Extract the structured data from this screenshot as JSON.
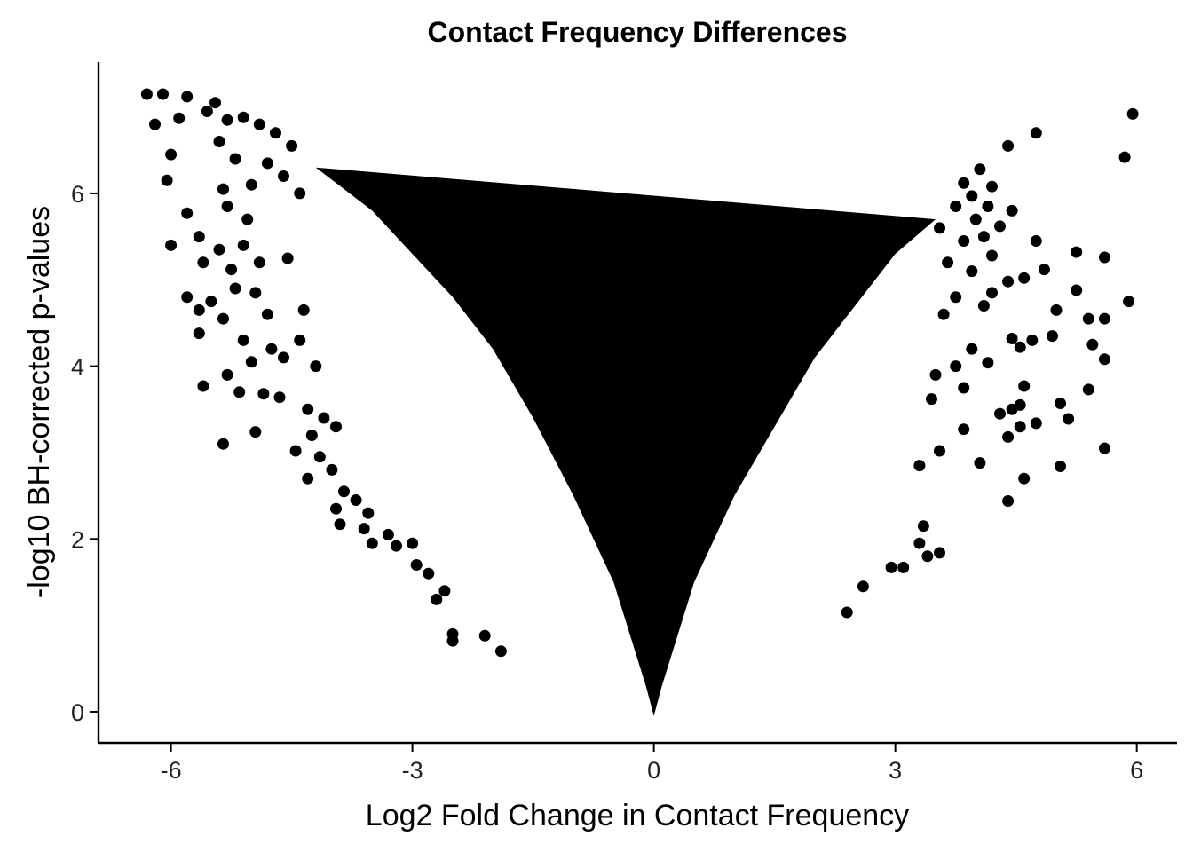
{
  "chart_data": {
    "type": "scatter",
    "title": "Contact Frequency Differences",
    "xlabel": "Log2 Fold Change in Contact Frequency",
    "ylabel": "-log10 BH-corrected p-values",
    "xlim": [
      -6.9,
      6.5
    ],
    "ylim": [
      -0.36,
      7.52
    ],
    "x_ticks": [
      -6,
      -3,
      0,
      3,
      6
    ],
    "x_tick_labels": [
      "-6",
      "-3",
      "0",
      "3",
      "6"
    ],
    "y_ticks": [
      0,
      2,
      4,
      6
    ],
    "y_tick_labels": [
      "0",
      "2",
      "4",
      "6"
    ],
    "grid": false,
    "legend": "none",
    "point_color": "#000000",
    "dense_region": {
      "description_points": [
        [
          -4.2,
          6.3
        ],
        [
          -3.5,
          5.8
        ],
        [
          -3.0,
          5.3
        ],
        [
          -2.5,
          4.8
        ],
        [
          -2.0,
          4.2
        ],
        [
          -1.5,
          3.4
        ],
        [
          -1.0,
          2.5
        ],
        [
          -0.5,
          1.5
        ],
        [
          -0.1,
          0.3
        ],
        [
          0.0,
          -0.05
        ],
        [
          0.1,
          0.3
        ],
        [
          0.5,
          1.5
        ],
        [
          1.0,
          2.5
        ],
        [
          1.5,
          3.3
        ],
        [
          2.0,
          4.1
        ],
        [
          2.5,
          4.7
        ],
        [
          3.0,
          5.3
        ],
        [
          3.5,
          5.7
        ]
      ]
    },
    "points": [
      {
        "x": -6.3,
        "y": 7.15
      },
      {
        "x": -6.1,
        "y": 7.15
      },
      {
        "x": -5.8,
        "y": 7.12
      },
      {
        "x": -5.45,
        "y": 7.05
      },
      {
        "x": -6.2,
        "y": 6.8
      },
      {
        "x": -5.9,
        "y": 6.87
      },
      {
        "x": -5.55,
        "y": 6.95
      },
      {
        "x": -5.3,
        "y": 6.85
      },
      {
        "x": -5.1,
        "y": 6.88
      },
      {
        "x": -4.9,
        "y": 6.8
      },
      {
        "x": -4.7,
        "y": 6.7
      },
      {
        "x": -4.5,
        "y": 6.55
      },
      {
        "x": -6.0,
        "y": 6.45
      },
      {
        "x": -5.4,
        "y": 6.6
      },
      {
        "x": -5.2,
        "y": 6.4
      },
      {
        "x": -4.8,
        "y": 6.35
      },
      {
        "x": -6.05,
        "y": 6.15
      },
      {
        "x": -5.35,
        "y": 6.05
      },
      {
        "x": -5.0,
        "y": 6.1
      },
      {
        "x": -4.6,
        "y": 6.2
      },
      {
        "x": -5.8,
        "y": 5.77
      },
      {
        "x": -5.3,
        "y": 5.85
      },
      {
        "x": -5.05,
        "y": 5.7
      },
      {
        "x": -4.4,
        "y": 6.0
      },
      {
        "x": -6.0,
        "y": 5.4
      },
      {
        "x": -5.65,
        "y": 5.5
      },
      {
        "x": -5.4,
        "y": 5.35
      },
      {
        "x": -5.1,
        "y": 5.4
      },
      {
        "x": -5.6,
        "y": 5.2
      },
      {
        "x": -5.25,
        "y": 5.12
      },
      {
        "x": -4.9,
        "y": 5.2
      },
      {
        "x": -4.55,
        "y": 5.25
      },
      {
        "x": -5.8,
        "y": 4.8
      },
      {
        "x": -5.5,
        "y": 4.75
      },
      {
        "x": -5.2,
        "y": 4.9
      },
      {
        "x": -4.95,
        "y": 4.85
      },
      {
        "x": -5.65,
        "y": 4.65
      },
      {
        "x": -5.35,
        "y": 4.55
      },
      {
        "x": -4.8,
        "y": 4.6
      },
      {
        "x": -4.35,
        "y": 4.65
      },
      {
        "x": -5.65,
        "y": 4.38
      },
      {
        "x": -5.1,
        "y": 4.3
      },
      {
        "x": -4.75,
        "y": 4.2
      },
      {
        "x": -4.4,
        "y": 4.3
      },
      {
        "x": -5.0,
        "y": 4.05
      },
      {
        "x": -4.6,
        "y": 4.1
      },
      {
        "x": -5.3,
        "y": 3.9
      },
      {
        "x": -4.2,
        "y": 4.0
      },
      {
        "x": -5.6,
        "y": 3.77
      },
      {
        "x": -5.15,
        "y": 3.7
      },
      {
        "x": -4.85,
        "y": 3.68
      },
      {
        "x": -4.65,
        "y": 3.64
      },
      {
        "x": -4.3,
        "y": 3.5
      },
      {
        "x": -4.1,
        "y": 3.4
      },
      {
        "x": -3.95,
        "y": 3.3
      },
      {
        "x": -4.25,
        "y": 3.2
      },
      {
        "x": -5.35,
        "y": 3.1
      },
      {
        "x": -4.95,
        "y": 3.24
      },
      {
        "x": -4.45,
        "y": 3.02
      },
      {
        "x": -4.15,
        "y": 2.95
      },
      {
        "x": -4.3,
        "y": 2.7
      },
      {
        "x": -4.0,
        "y": 2.8
      },
      {
        "x": -3.85,
        "y": 2.55
      },
      {
        "x": -3.7,
        "y": 2.45
      },
      {
        "x": -3.95,
        "y": 2.35
      },
      {
        "x": -3.55,
        "y": 2.3
      },
      {
        "x": -3.9,
        "y": 2.17
      },
      {
        "x": -3.6,
        "y": 2.12
      },
      {
        "x": -3.5,
        "y": 1.95
      },
      {
        "x": -3.2,
        "y": 1.92
      },
      {
        "x": -3.0,
        "y": 1.95
      },
      {
        "x": -3.3,
        "y": 2.05
      },
      {
        "x": -2.95,
        "y": 1.7
      },
      {
        "x": -2.8,
        "y": 1.6
      },
      {
        "x": -2.6,
        "y": 1.4
      },
      {
        "x": -2.7,
        "y": 1.3
      },
      {
        "x": -2.5,
        "y": 0.9
      },
      {
        "x": -2.5,
        "y": 0.82
      },
      {
        "x": -2.1,
        "y": 0.88
      },
      {
        "x": -1.9,
        "y": 0.7
      },
      {
        "x": 5.95,
        "y": 6.92
      },
      {
        "x": 4.75,
        "y": 6.7
      },
      {
        "x": 4.4,
        "y": 6.55
      },
      {
        "x": 5.85,
        "y": 6.42
      },
      {
        "x": 4.05,
        "y": 6.28
      },
      {
        "x": 3.85,
        "y": 6.12
      },
      {
        "x": 4.2,
        "y": 6.08
      },
      {
        "x": 3.95,
        "y": 5.97
      },
      {
        "x": 4.15,
        "y": 5.85
      },
      {
        "x": 4.0,
        "y": 5.7
      },
      {
        "x": 3.75,
        "y": 5.85
      },
      {
        "x": 4.45,
        "y": 5.8
      },
      {
        "x": 3.55,
        "y": 5.6
      },
      {
        "x": 3.85,
        "y": 5.45
      },
      {
        "x": 4.1,
        "y": 5.5
      },
      {
        "x": 4.3,
        "y": 5.62
      },
      {
        "x": 4.75,
        "y": 5.45
      },
      {
        "x": 5.25,
        "y": 5.32
      },
      {
        "x": 5.6,
        "y": 5.26
      },
      {
        "x": 4.2,
        "y": 5.28
      },
      {
        "x": 3.65,
        "y": 5.2
      },
      {
        "x": 3.95,
        "y": 5.1
      },
      {
        "x": 4.6,
        "y": 5.02
      },
      {
        "x": 4.85,
        "y": 5.12
      },
      {
        "x": 4.4,
        "y": 4.98
      },
      {
        "x": 4.2,
        "y": 4.85
      },
      {
        "x": 5.25,
        "y": 4.88
      },
      {
        "x": 3.75,
        "y": 4.8
      },
      {
        "x": 5.9,
        "y": 4.75
      },
      {
        "x": 5.0,
        "y": 4.65
      },
      {
        "x": 4.1,
        "y": 4.7
      },
      {
        "x": 3.6,
        "y": 4.6
      },
      {
        "x": 5.4,
        "y": 4.55
      },
      {
        "x": 5.6,
        "y": 4.55
      },
      {
        "x": 4.95,
        "y": 4.35
      },
      {
        "x": 4.7,
        "y": 4.3
      },
      {
        "x": 4.45,
        "y": 4.32
      },
      {
        "x": 4.55,
        "y": 4.22
      },
      {
        "x": 5.45,
        "y": 4.25
      },
      {
        "x": 3.95,
        "y": 4.2
      },
      {
        "x": 5.6,
        "y": 4.08
      },
      {
        "x": 4.15,
        "y": 4.04
      },
      {
        "x": 3.75,
        "y": 4.0
      },
      {
        "x": 3.5,
        "y": 3.9
      },
      {
        "x": 3.85,
        "y": 3.75
      },
      {
        "x": 4.6,
        "y": 3.77
      },
      {
        "x": 5.4,
        "y": 3.73
      },
      {
        "x": 3.45,
        "y": 3.62
      },
      {
        "x": 5.05,
        "y": 3.57
      },
      {
        "x": 4.55,
        "y": 3.55
      },
      {
        "x": 4.45,
        "y": 3.5
      },
      {
        "x": 4.3,
        "y": 3.45
      },
      {
        "x": 5.15,
        "y": 3.39
      },
      {
        "x": 4.75,
        "y": 3.34
      },
      {
        "x": 4.55,
        "y": 3.3
      },
      {
        "x": 3.85,
        "y": 3.27
      },
      {
        "x": 4.4,
        "y": 3.18
      },
      {
        "x": 5.6,
        "y": 3.05
      },
      {
        "x": 3.55,
        "y": 3.02
      },
      {
        "x": 4.05,
        "y": 2.88
      },
      {
        "x": 5.05,
        "y": 2.84
      },
      {
        "x": 3.3,
        "y": 2.85
      },
      {
        "x": 4.6,
        "y": 2.7
      },
      {
        "x": 4.4,
        "y": 2.44
      },
      {
        "x": 3.35,
        "y": 2.15
      },
      {
        "x": 3.3,
        "y": 1.95
      },
      {
        "x": 3.55,
        "y": 1.84
      },
      {
        "x": 3.4,
        "y": 1.8
      },
      {
        "x": 2.95,
        "y": 1.67
      },
      {
        "x": 3.1,
        "y": 1.67
      },
      {
        "x": 2.6,
        "y": 1.45
      },
      {
        "x": 2.4,
        "y": 1.15
      }
    ]
  }
}
